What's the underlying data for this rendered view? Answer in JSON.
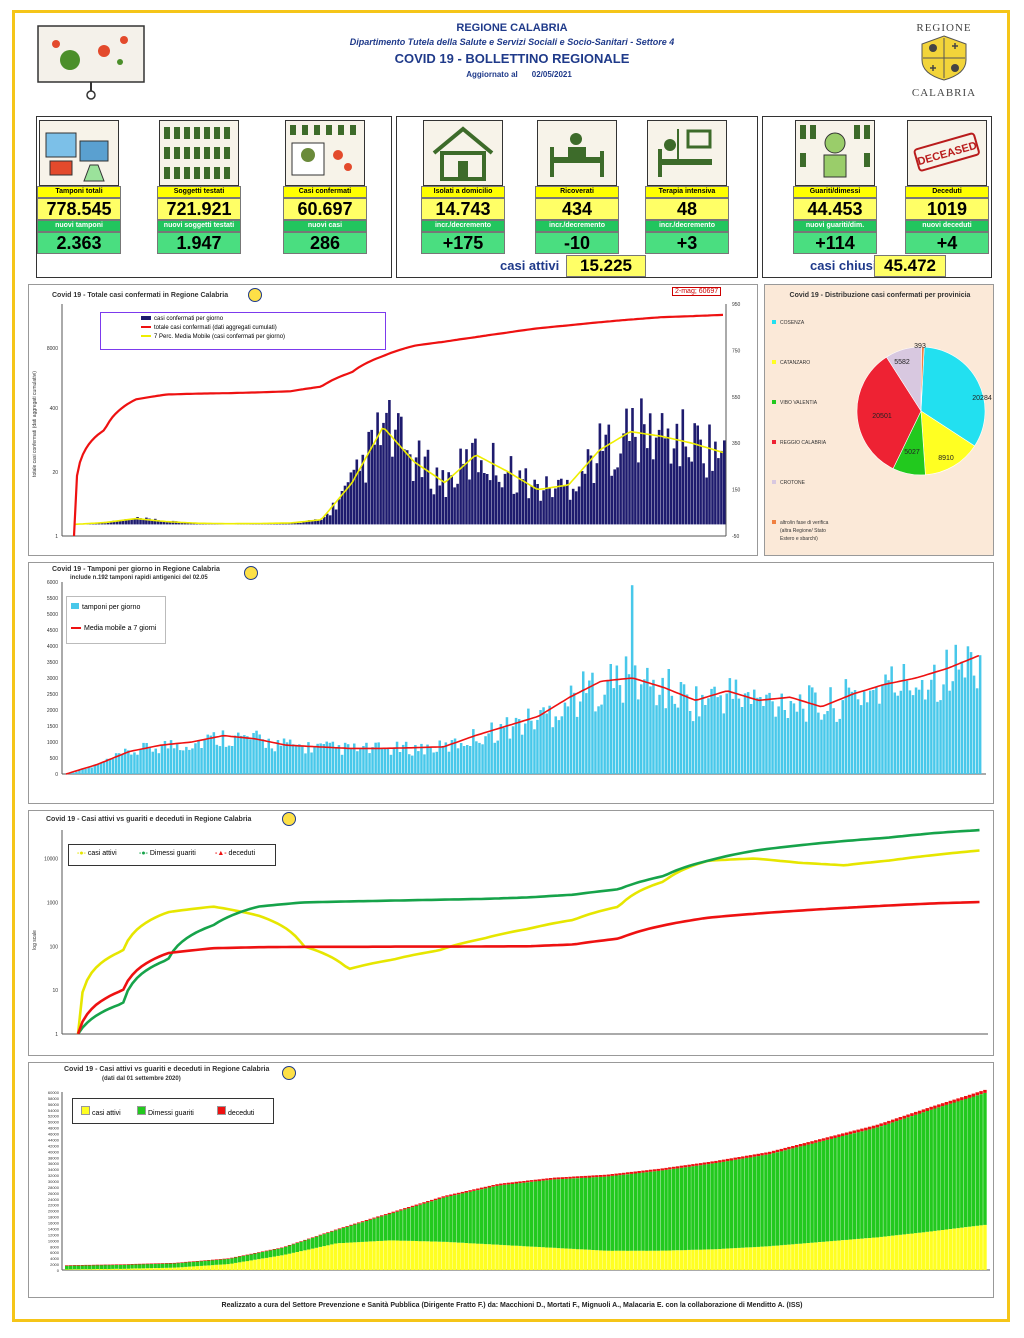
{
  "header": {
    "region": "REGIONE CALABRIA",
    "department": "Dipartimento Tutela della Salute e Servizi Sociali e Socio-Sanitari - Settore 4",
    "title": "COVID 19 - BOLLETTINO REGIONALE",
    "updated_label": "Aggiornato al",
    "updated_date": "02/05/2021",
    "logo_top": "REGIONE",
    "logo_bottom": "CALABRIA"
  },
  "kpi": {
    "tamponi": {
      "label": "Tamponi totali",
      "value": "778.545",
      "sub_label": "nuovi tamponi",
      "sub_value": "2.363"
    },
    "testati": {
      "label": "Soggetti testati",
      "value": "721.921",
      "sub_label": "nuovi soggetti testati",
      "sub_value": "1.947"
    },
    "confermati": {
      "label": "Casi confermati",
      "value": "60.697",
      "sub_label": "nuovi casi",
      "sub_value": "286"
    },
    "isolati": {
      "label": "Isolati a domicilio",
      "value": "14.743",
      "sub_label": "incr./decremento",
      "sub_value": "+175"
    },
    "ricoverati": {
      "label": "Ricoverati",
      "value": "434",
      "sub_label": "incr./decremento",
      "sub_value": "-10"
    },
    "terapia": {
      "label": "Terapia intensiva",
      "value": "48",
      "sub_label": "incr./decremento",
      "sub_value": "+3"
    },
    "guariti": {
      "label": "Guariti/dimessi",
      "value": "44.453",
      "sub_label": "nuovi guariti/dim.",
      "sub_value": "+114"
    },
    "deceduti": {
      "label": "Deceduti",
      "value": "1019",
      "sub_label": "nuovi deceduti",
      "sub_value": "+4"
    },
    "attivi_label": "casi attivi",
    "attivi_value": "15.225",
    "chiusi_label": "casi chiusi",
    "chiusi_value": "45.472",
    "deceased_stamp": "DECEASED"
  },
  "footer": "Realizzato a cura del Settore Prevenzione e Sanità Pubblica (Dirigente Fratto F.) da:  Macchioni D., Mortati F., Mignuoli A., Malacaria E. con la collaborazione di Menditto A. (ISS)",
  "chart_data": [
    {
      "type": "line",
      "title": "Covid 19 - Totale casi confermati in Regione Calabria",
      "ylabel": "totale casi confermati (dati aggregati cumulativi)",
      "annotation": "2-mag; 60697",
      "left_ticks": [
        "8000",
        "400",
        "20",
        "1"
      ],
      "right_ticks": [
        "950",
        "750",
        "550",
        "350",
        "150",
        "-50"
      ],
      "legend": [
        "casi confermati per giorno",
        "totale casi confermati (dati aggregati cumulati)",
        "7 Perc. Media Mobile (casi confermati per giorno)"
      ],
      "series": [
        {
          "name": "totale casi confermati (dati aggregati cumulati)",
          "values": [
            1,
            200,
            900,
            1150,
            1200,
            1230,
            1280,
            1350,
            1700,
            3500,
            7800,
            13000,
            16000,
            20000,
            25000,
            31000,
            36000,
            42000,
            48000,
            54000,
            57000,
            60697
          ]
        },
        {
          "name": "7 Perc. Media Mobile (casi confermati per giorno)",
          "values": [
            0,
            8,
            25,
            12,
            5,
            3,
            4,
            6,
            20,
            180,
            420,
            270,
            180,
            300,
            230,
            150,
            170,
            320,
            400,
            380,
            350,
            310
          ]
        }
      ]
    },
    {
      "type": "pie",
      "title": "Covid 19 - Distribuzione casi confermati per provinicia",
      "labels": [
        "COSENZA",
        "CATANZARO",
        "VIBO VALENTIA",
        "REGGIO CALABRIA",
        "CROTONE",
        "altro/in fase di verifica (altra Regione/ Stato Estero e sbarchi)"
      ],
      "values": [
        20284,
        8910,
        5027,
        20501,
        5582,
        393
      ],
      "colors": [
        "#22e0f0",
        "#ffff22",
        "#22c91e",
        "#ee2233",
        "#d8c8e0",
        "#f08040"
      ]
    },
    {
      "type": "bar",
      "title": "Covid 19 - Tamponi per giorno in Regione Calabria",
      "subtitle": "include n.192 tamponi rapidi antigenici del 02.05",
      "ylim": [
        0,
        6000
      ],
      "yticks": [
        "6000",
        "5500",
        "5000",
        "4500",
        "4000",
        "3500",
        "3000",
        "2500",
        "2000",
        "1500",
        "1000",
        "500",
        "0"
      ],
      "legend": [
        "tamponi per giorno",
        "Media mobile a 7 giorni"
      ],
      "series": [
        {
          "name": "Media mobile a 7 giorni",
          "values": [
            0,
            300,
            700,
            900,
            1000,
            1200,
            1100,
            900,
            850,
            800,
            800,
            820,
            850,
            1200,
            1500,
            1800,
            2400,
            2900,
            3000,
            2700,
            2300,
            2600,
            2300,
            2400,
            2100,
            2500,
            2800,
            3000,
            3300,
            3700
          ]
        }
      ]
    },
    {
      "type": "line",
      "title": "Covid 19 - Casi attivi vs guariti e deceduti in Regione Calabria",
      "ylabel": "log scale",
      "yticks": [
        "10000",
        "1000",
        "100",
        "10",
        "1"
      ],
      "legend": [
        "casi attivi",
        "Dimessi guariti",
        "deceduti"
      ],
      "series": [
        {
          "name": "casi attivi",
          "values": [
            1,
            80,
            600,
            800,
            500,
            100,
            30,
            50,
            80,
            150,
            250,
            400,
            800,
            3000,
            9000,
            10000,
            8000,
            7000,
            9000,
            12000,
            15225
          ]
        },
        {
          "name": "Dimessi guariti",
          "values": [
            1,
            5,
            50,
            300,
            800,
            1000,
            1050,
            1100,
            1150,
            1200,
            1300,
            1500,
            2000,
            4000,
            9000,
            15000,
            20000,
            25000,
            30000,
            38000,
            44453
          ]
        },
        {
          "name": "deceduti",
          "values": [
            1,
            10,
            70,
            90,
            95,
            97,
            97,
            98,
            98,
            99,
            100,
            110,
            150,
            300,
            450,
            550,
            650,
            750,
            850,
            950,
            1019
          ]
        }
      ]
    },
    {
      "type": "bar",
      "title": "Covid 19 - Casi attivi vs guariti e deceduti in Regione Calabria",
      "subtitle": "(dati dal 01 settembre 2020)",
      "ylim": [
        0,
        60000
      ],
      "yticks": [
        "60000",
        "58000",
        "56000",
        "54000",
        "52000",
        "50000",
        "48000",
        "46000",
        "44000",
        "42000",
        "40000",
        "38000",
        "36000",
        "34000",
        "32000",
        "30000",
        "28000",
        "26000",
        "24000",
        "22000",
        "20000",
        "18000",
        "16000",
        "14000",
        "12000",
        "10000",
        "8000",
        "6000",
        "4000",
        "2000",
        "0"
      ],
      "legend": [
        "casi attivi",
        "Dimessi guariti",
        "deceduti"
      ],
      "series": [
        {
          "name": "casi attivi",
          "values": [
            200,
            400,
            800,
            2000,
            5000,
            9000,
            10000,
            9500,
            8500,
            7500,
            6500,
            6500,
            7000,
            8000,
            9500,
            11000,
            13000,
            15225
          ]
        },
        {
          "name": "Dimessi guariti",
          "values": [
            1300,
            1400,
            1500,
            1800,
            2500,
            4500,
            9000,
            15000,
            20000,
            23000,
            25000,
            27000,
            29000,
            31000,
            34000,
            37000,
            41000,
            44453
          ]
        },
        {
          "name": "deceduti",
          "values": [
            100,
            100,
            110,
            120,
            160,
            250,
            400,
            500,
            560,
            600,
            640,
            680,
            720,
            780,
            850,
            920,
            980,
            1019
          ]
        }
      ]
    }
  ]
}
